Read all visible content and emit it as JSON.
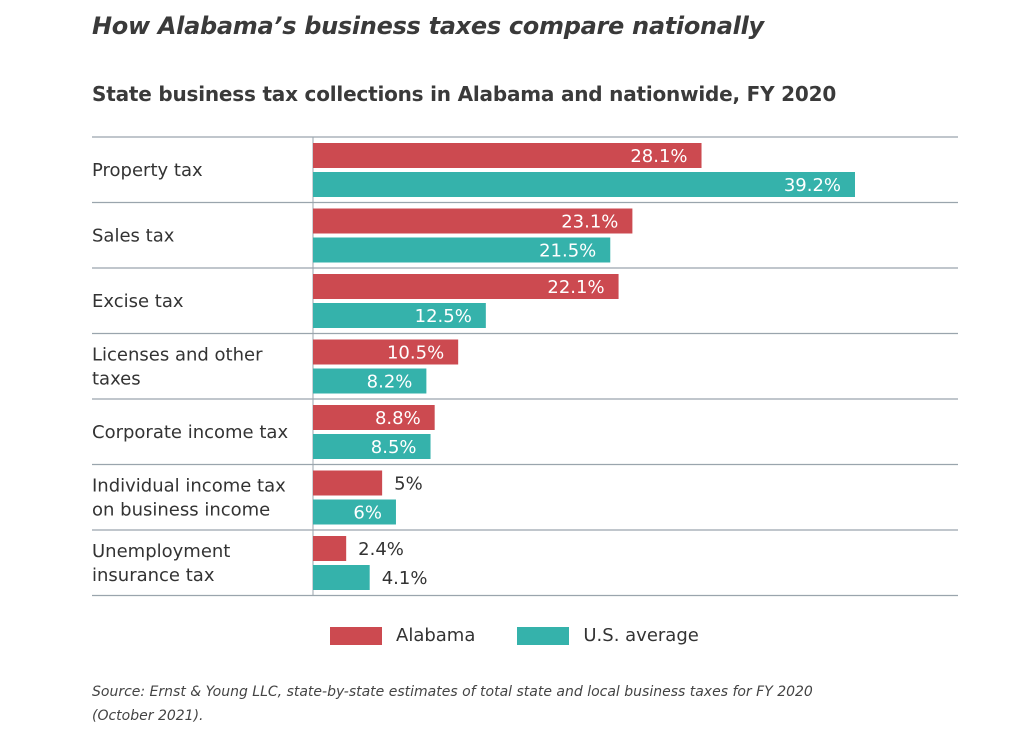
{
  "headline": "How Alabama’s business taxes compare nationally",
  "colors": {
    "alabama": "#cc4a50",
    "us": "#35b2ab",
    "rule": "#9aa5ad",
    "text": "#333333"
  },
  "legend": {
    "alabama": "Alabama",
    "us": "U.S. average"
  },
  "source": "Source: Ernst & Young LLC, state-by-state estimates of total state and local business taxes for FY 2020 (October 2021).",
  "chart_data": {
    "type": "bar",
    "orientation": "horizontal",
    "title": "State business tax collections in Alabama and nationwide, FY 2020",
    "categories": [
      [
        "Property tax"
      ],
      [
        "Sales tax"
      ],
      [
        "Excise tax"
      ],
      [
        "Licenses and other",
        "taxes"
      ],
      [
        "Corporate income tax"
      ],
      [
        "Individual income tax",
        "on business income"
      ],
      [
        "Unemployment",
        "insurance tax"
      ]
    ],
    "series": [
      {
        "name": "Alabama",
        "values": [
          28.1,
          23.1,
          22.1,
          10.5,
          8.8,
          5,
          2.4
        ],
        "labels": [
          "28.1%",
          "23.1%",
          "22.1%",
          "10.5%",
          "8.8%",
          "5%",
          "2.4%"
        ]
      },
      {
        "name": "U.S. average",
        "values": [
          39.2,
          21.5,
          12.5,
          8.2,
          8.5,
          6,
          4.1
        ],
        "labels": [
          "39.2%",
          "21.5%",
          "12.5%",
          "8.2%",
          "8.5%",
          "6%",
          "4.1%"
        ]
      }
    ],
    "xlim": [
      0,
      39.2
    ],
    "legend_position": "bottom",
    "grid": false
  }
}
